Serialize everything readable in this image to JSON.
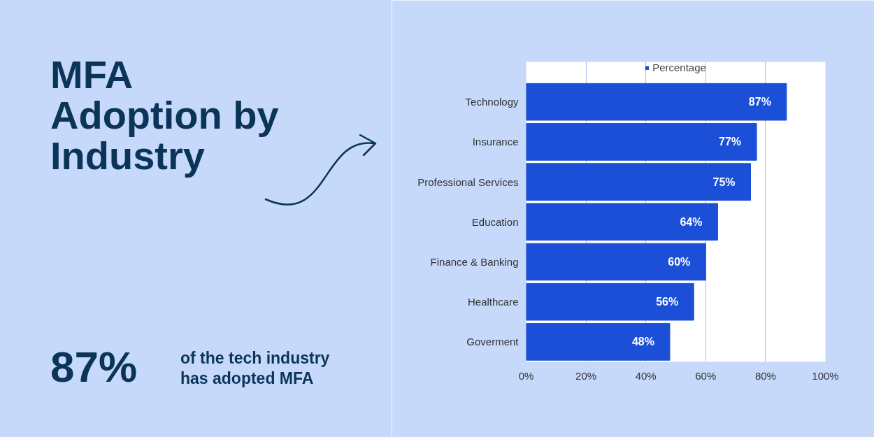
{
  "chart_data": {
    "type": "bar",
    "orientation": "horizontal",
    "title": "MFA Adoption by Industry",
    "annotations": [
      "87%",
      "of the tech industry has adopted MFA"
    ],
    "categories": [
      "Technology",
      "Insurance",
      "Professional Services",
      "Education",
      "Finance & Banking",
      "Healthcare",
      "Goverment"
    ],
    "series": [
      {
        "name": "Percentage",
        "color": "#1b4fd8",
        "values": [
          87,
          77,
          75,
          64,
          60,
          56,
          48
        ],
        "value_labels": [
          "87%",
          "77%",
          "75%",
          "64%",
          "60%",
          "56%",
          "48%"
        ]
      }
    ],
    "xlim": [
      0,
      100
    ],
    "xticks": [
      {
        "value": 0,
        "label": "0%"
      },
      {
        "value": 20,
        "label": "20%"
      },
      {
        "value": 40,
        "label": "40%"
      },
      {
        "value": 60,
        "label": "60%"
      },
      {
        "value": 80,
        "label": "80%"
      },
      {
        "value": 100,
        "label": "100%"
      }
    ],
    "grid": "x",
    "legend": "top"
  }
}
